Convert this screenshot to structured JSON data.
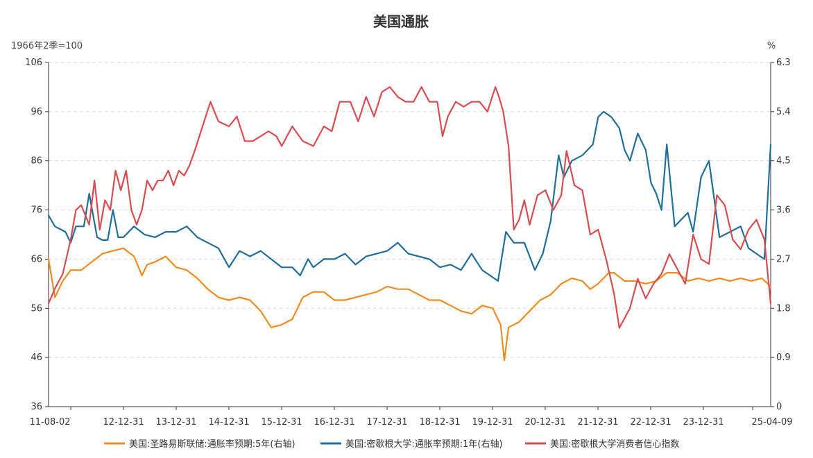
{
  "chart_data": {
    "type": "line",
    "title": "美国通胀",
    "left_axis": {
      "unit_label": "1966年2季=100",
      "ticks": [
        "106",
        "96",
        "86",
        "76",
        "66",
        "56",
        "46",
        "36"
      ],
      "ylim": [
        36,
        106
      ]
    },
    "right_axis": {
      "unit_label": "%",
      "ticks": [
        "6.3",
        "5.4",
        "4.5",
        "3.6",
        "2.7",
        "1.8",
        "0.9",
        "0"
      ],
      "ylim": [
        0,
        6.3
      ]
    },
    "x_ticks": [
      "11-08-02",
      "12-12-31",
      "13-12-31",
      "14-12-31",
      "15-12-31",
      "16-12-31",
      "17-12-31",
      "18-12-31",
      "19-12-31",
      "20-12-31",
      "21-12-31",
      "22-12-31",
      "23-12-31",
      "25-04-09"
    ],
    "x_range_years": [
      2011.58,
      2025.27
    ],
    "series": [
      {
        "name": "美国:圣路易斯联储:通胀率预期:5年(右轴)",
        "axis": "right",
        "color": "#F08C1E",
        "x": [
          2011.58,
          2011.7,
          2011.85,
          2012.0,
          2012.2,
          2012.4,
          2012.6,
          2012.8,
          2013.0,
          2013.2,
          2013.35,
          2013.45,
          2013.6,
          2013.8,
          2014.0,
          2014.2,
          2014.4,
          2014.6,
          2014.8,
          2015.0,
          2015.2,
          2015.4,
          2015.6,
          2015.8,
          2016.0,
          2016.2,
          2016.4,
          2016.6,
          2016.8,
          2017.0,
          2017.2,
          2017.4,
          2017.6,
          2017.8,
          2018.0,
          2018.2,
          2018.4,
          2018.6,
          2018.8,
          2019.0,
          2019.2,
          2019.4,
          2019.6,
          2019.8,
          2020.0,
          2020.15,
          2020.22,
          2020.3,
          2020.5,
          2020.7,
          2020.9,
          2021.1,
          2021.3,
          2021.5,
          2021.7,
          2021.85,
          2022.0,
          2022.2,
          2022.3,
          2022.5,
          2022.7,
          2022.9,
          2023.1,
          2023.3,
          2023.5,
          2023.7,
          2023.9,
          2024.1,
          2024.3,
          2024.5,
          2024.7,
          2024.9,
          2025.1,
          2025.27
        ],
        "values": [
          2.7,
          2.0,
          2.3,
          2.5,
          2.5,
          2.65,
          2.8,
          2.85,
          2.9,
          2.75,
          2.4,
          2.6,
          2.65,
          2.75,
          2.55,
          2.5,
          2.35,
          2.15,
          2.0,
          1.95,
          2.0,
          1.95,
          1.75,
          1.45,
          1.5,
          1.6,
          2.0,
          2.1,
          2.1,
          1.95,
          1.95,
          2.0,
          2.05,
          2.1,
          2.2,
          2.15,
          2.15,
          2.05,
          1.95,
          1.95,
          1.85,
          1.75,
          1.7,
          1.85,
          1.8,
          1.5,
          0.85,
          1.45,
          1.55,
          1.75,
          1.95,
          2.05,
          2.25,
          2.35,
          2.3,
          2.15,
          2.25,
          2.45,
          2.45,
          2.3,
          2.3,
          2.25,
          2.3,
          2.45,
          2.45,
          2.3,
          2.35,
          2.3,
          2.35,
          2.3,
          2.35,
          2.3,
          2.35,
          2.2
        ]
      },
      {
        "name": "美国:密歇根大学:通胀率预期:1年(右轴)",
        "axis": "right",
        "color": "#1F6E9C",
        "x": [
          2011.58,
          2011.7,
          2011.9,
          2012.0,
          2012.1,
          2012.25,
          2012.35,
          2012.5,
          2012.6,
          2012.7,
          2012.8,
          2012.9,
          2013.0,
          2013.2,
          2013.4,
          2013.6,
          2013.8,
          2014.0,
          2014.2,
          2014.4,
          2014.6,
          2014.8,
          2015.0,
          2015.2,
          2015.4,
          2015.6,
          2015.8,
          2016.0,
          2016.2,
          2016.35,
          2016.5,
          2016.6,
          2016.8,
          2017.0,
          2017.2,
          2017.4,
          2017.6,
          2017.8,
          2018.0,
          2018.2,
          2018.4,
          2018.6,
          2018.8,
          2019.0,
          2019.2,
          2019.4,
          2019.6,
          2019.8,
          2019.95,
          2020.1,
          2020.25,
          2020.4,
          2020.6,
          2020.8,
          2020.95,
          2021.1,
          2021.25,
          2021.35,
          2021.5,
          2021.7,
          2021.9,
          2022.0,
          2022.1,
          2022.25,
          2022.4,
          2022.5,
          2022.6,
          2022.75,
          2022.9,
          2023.0,
          2023.1,
          2023.2,
          2023.3,
          2023.45,
          2023.55,
          2023.7,
          2023.8,
          2023.95,
          2024.1,
          2024.3,
          2024.5,
          2024.7,
          2024.85,
          2025.0,
          2025.15,
          2025.27
        ],
        "values": [
          3.5,
          3.3,
          3.2,
          3.0,
          3.3,
          3.3,
          3.9,
          3.1,
          3.05,
          3.05,
          3.6,
          3.1,
          3.1,
          3.3,
          3.15,
          3.1,
          3.2,
          3.2,
          3.3,
          3.1,
          3.0,
          2.9,
          2.55,
          2.85,
          2.75,
          2.85,
          2.7,
          2.55,
          2.55,
          2.4,
          2.7,
          2.55,
          2.7,
          2.7,
          2.8,
          2.6,
          2.75,
          2.8,
          2.85,
          3.0,
          2.8,
          2.75,
          2.7,
          2.55,
          2.6,
          2.5,
          2.8,
          2.5,
          2.4,
          2.3,
          3.2,
          3.0,
          3.0,
          2.5,
          2.8,
          3.4,
          4.6,
          4.2,
          4.5,
          4.6,
          4.8,
          5.3,
          5.4,
          5.3,
          5.1,
          4.7,
          4.5,
          5.0,
          4.7,
          4.1,
          3.9,
          3.6,
          4.8,
          3.3,
          3.4,
          3.55,
          3.2,
          4.2,
          4.5,
          3.1,
          3.2,
          3.3,
          2.9,
          2.8,
          2.7,
          4.8
        ]
      },
      {
        "name": "美国:密歇根大学消费者信心指数",
        "axis": "left",
        "color": "#D94B4F",
        "x": [
          2011.58,
          2011.7,
          2011.85,
          2012.0,
          2012.1,
          2012.2,
          2012.35,
          2012.45,
          2012.55,
          2012.65,
          2012.75,
          2012.85,
          2012.95,
          2013.05,
          2013.15,
          2013.25,
          2013.35,
          2013.45,
          2013.55,
          2013.65,
          2013.75,
          2013.85,
          2013.95,
          2014.05,
          2014.15,
          2014.25,
          2014.35,
          2014.5,
          2014.65,
          2014.8,
          2015.0,
          2015.15,
          2015.3,
          2015.45,
          2015.6,
          2015.75,
          2015.9,
          2016.0,
          2016.2,
          2016.4,
          2016.6,
          2016.8,
          2016.95,
          2017.1,
          2017.3,
          2017.45,
          2017.6,
          2017.75,
          2017.9,
          2018.05,
          2018.2,
          2018.35,
          2018.5,
          2018.65,
          2018.8,
          2018.95,
          2019.05,
          2019.15,
          2019.3,
          2019.45,
          2019.6,
          2019.75,
          2019.9,
          2020.05,
          2020.12,
          2020.2,
          2020.3,
          2020.4,
          2020.5,
          2020.6,
          2020.7,
          2020.85,
          2021.0,
          2021.15,
          2021.3,
          2021.4,
          2021.55,
          2021.7,
          2021.85,
          2022.0,
          2022.15,
          2022.3,
          2022.4,
          2022.5,
          2022.6,
          2022.75,
          2022.9,
          2023.05,
          2023.2,
          2023.35,
          2023.5,
          2023.65,
          2023.8,
          2023.95,
          2024.1,
          2024.25,
          2024.4,
          2024.55,
          2024.7,
          2024.85,
          2025.0,
          2025.15,
          2025.27
        ],
        "values": [
          57,
          60,
          63,
          70,
          76,
          77,
          73,
          82,
          72,
          78,
          76,
          84,
          80,
          84,
          76,
          73,
          76,
          82,
          80,
          82,
          82,
          84,
          81,
          84,
          83,
          85,
          88,
          93,
          98,
          94,
          93,
          95,
          90,
          90,
          91,
          92,
          91,
          89,
          93,
          90,
          89,
          93,
          92,
          98,
          98,
          94,
          99,
          95,
          100,
          101,
          99,
          98,
          98,
          101,
          98,
          98,
          91,
          95,
          98,
          97,
          98,
          98,
          96,
          101,
          99,
          96,
          89,
          72,
          74,
          78,
          73,
          79,
          80,
          76,
          79,
          88,
          81,
          80,
          71,
          72,
          66,
          59,
          52,
          54,
          56,
          62,
          58,
          61,
          63,
          67,
          64,
          61,
          71,
          66,
          65,
          79,
          77,
          70,
          68,
          72,
          74,
          70,
          57
        ]
      }
    ],
    "legend_position": "bottom-center",
    "grid": "horizontal dashed"
  }
}
